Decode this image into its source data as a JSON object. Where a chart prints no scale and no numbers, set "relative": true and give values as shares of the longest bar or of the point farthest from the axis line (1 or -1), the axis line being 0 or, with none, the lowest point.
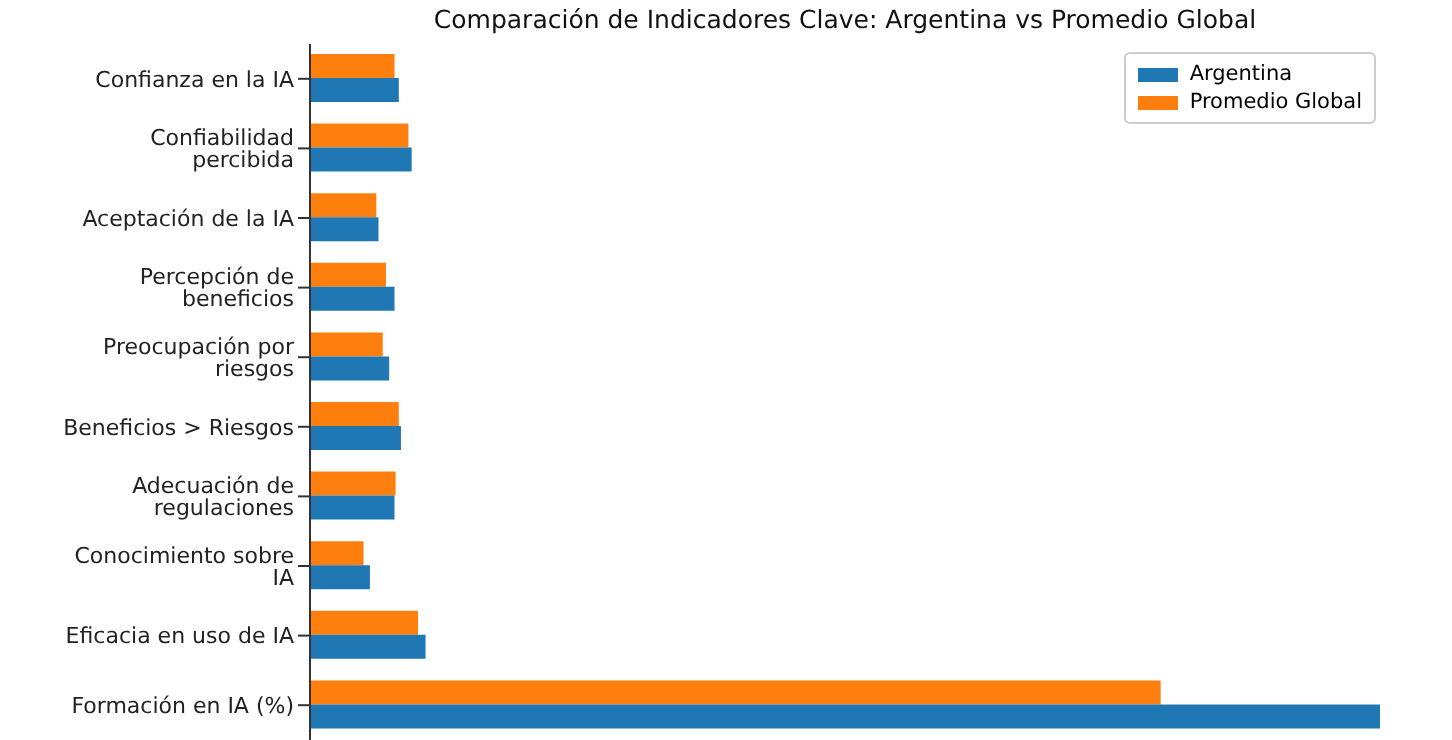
{
  "chart_data": {
    "type": "bar",
    "orientation": "horizontal",
    "relative": true,
    "title": "Comparación de Indicadores Clave: Argentina vs Promedio Global",
    "categories": [
      "Confianza en la IA",
      "Confiabilidad percibida",
      "Aceptación de la IA",
      "Percepción de beneficios",
      "Preocupación por riesgos",
      "Beneficios > Riesgos",
      "Adecuación de regulaciones",
      "Conocimiento sobre IA",
      "Eficacia en uso de IA",
      "Formación en IA (%)"
    ],
    "series": [
      {
        "name": "Argentina",
        "color": "#1f77b4",
        "values": [
          0.083,
          0.095,
          0.064,
          0.079,
          0.074,
          0.085,
          0.079,
          0.056,
          0.108,
          1
        ]
      },
      {
        "name": "Promedio Global",
        "color": "#ff7f0e",
        "values": [
          0.079,
          0.092,
          0.062,
          0.071,
          0.068,
          0.083,
          0.08,
          0.05,
          0.101,
          0.795
        ]
      }
    ],
    "legend": "top right"
  }
}
